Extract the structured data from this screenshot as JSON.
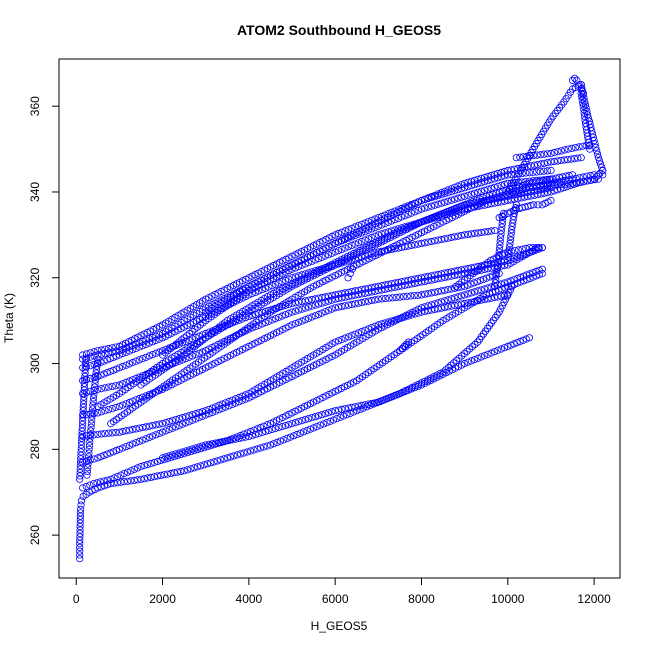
{
  "chart_data": {
    "type": "scatter",
    "title": "ATOM2 Southbound H_GEOS5",
    "xlabel": "H_GEOS5",
    "ylabel": "Theta (K)",
    "xlim": [
      -400,
      12600
    ],
    "ylim": [
      250,
      371
    ],
    "x_ticks": [
      0,
      2000,
      4000,
      6000,
      8000,
      10000,
      12000
    ],
    "x_tick_labels": [
      "0",
      "2000",
      "4000",
      "6000",
      "8000",
      "10000",
      "12000"
    ],
    "y_ticks": [
      260,
      280,
      300,
      320,
      340,
      360
    ],
    "y_tick_labels": [
      "260",
      "280",
      "300",
      "320",
      "340",
      "360"
    ],
    "grid": false,
    "marker": "open-circle",
    "point_color": "#0000ff",
    "series": [
      {
        "x": [
          80,
          80,
          90,
          100,
          120,
          160,
          300,
          500,
          800,
          1500,
          2500,
          3500,
          4500,
          5500,
          6500,
          7500,
          8500,
          9300,
          9800,
          10100
        ],
        "y": [
          254.5,
          258,
          262,
          266,
          268,
          269,
          270,
          271,
          272,
          273,
          275,
          278,
          281,
          285,
          289,
          293,
          298,
          305,
          312,
          318
        ]
      },
      {
        "x": [
          150,
          400,
          800,
          1500,
          2500,
          3500,
          4500,
          5500,
          6500,
          7500,
          8500,
          9500,
          10300,
          10800
        ],
        "y": [
          271,
          272,
          273,
          276,
          279,
          282,
          286,
          291,
          296,
          303,
          310,
          316,
          319,
          321
        ]
      },
      {
        "x": [
          150,
          500,
          1000,
          2000,
          3000,
          4000,
          5000,
          6000,
          7000,
          8000,
          9000,
          10000,
          10800
        ],
        "y": [
          277,
          278,
          280,
          284,
          288,
          292,
          297,
          302,
          308,
          313,
          316,
          319,
          322
        ]
      },
      {
        "x": [
          150,
          500,
          1000,
          2000,
          3000,
          4000,
          5000,
          6000,
          7000,
          8000,
          9000,
          10000
        ],
        "y": [
          283,
          283.5,
          284,
          286,
          289,
          293,
          299,
          305,
          309,
          312,
          314,
          316
        ]
      },
      {
        "x": [
          150,
          500,
          1000,
          2000,
          3000,
          4000,
          5000,
          6000,
          7000,
          8000,
          9000,
          9800
        ],
        "y": [
          288,
          288.5,
          290,
          294,
          299,
          304,
          309,
          313,
          315,
          316,
          318,
          321
        ]
      },
      {
        "x": [
          150,
          500,
          1000,
          2000,
          3000,
          4000,
          5000,
          6000,
          7000,
          8000,
          9000,
          10000,
          10700
        ],
        "y": [
          293,
          294,
          295,
          299,
          303,
          308,
          312,
          315,
          317,
          319,
          321,
          323,
          327
        ]
      },
      {
        "x": [
          150,
          500,
          1000,
          2000,
          3000,
          4000,
          5000,
          6000,
          7000,
          8000,
          9000,
          10000,
          10800
        ],
        "y": [
          296,
          297,
          299,
          303,
          307,
          311,
          314,
          316,
          318,
          320,
          322,
          324,
          327
        ]
      },
      {
        "x": [
          150,
          500,
          1000,
          2000,
          3000,
          4000,
          5000,
          6000,
          7000,
          8000,
          9000,
          9700
        ],
        "y": [
          299,
          300,
          302,
          306,
          311,
          316,
          320,
          323,
          326,
          328,
          330,
          331
        ]
      },
      {
        "x": [
          150,
          500,
          1000,
          2000,
          3000,
          4000,
          5000,
          6000,
          7000,
          8000,
          9000,
          10000,
          11000
        ],
        "y": [
          301,
          302,
          303,
          307,
          313,
          318,
          323,
          328,
          332,
          336,
          339,
          342,
          343
        ]
      },
      {
        "x": [
          150,
          500,
          1000,
          2000,
          3000,
          4000,
          5000,
          6000,
          7000,
          8000,
          9000,
          10000,
          11000
        ],
        "y": [
          302,
          303,
          304,
          309,
          315,
          320,
          325,
          330,
          334,
          338,
          341,
          344,
          345
        ]
      },
      {
        "x": [
          500,
          1000,
          2000,
          3000,
          4000,
          5000,
          6000,
          7000,
          8000,
          9000,
          10000,
          11000
        ],
        "y": [
          290,
          293,
          300,
          306,
          312,
          318,
          323,
          328,
          333,
          337,
          339,
          341
        ]
      },
      {
        "x": [
          800,
          1500,
          2500,
          3500,
          4500,
          5500,
          6500,
          7500,
          8500,
          9500,
          10500,
          11500,
          12100
        ],
        "y": [
          286,
          291,
          298,
          305,
          312,
          318,
          323,
          328,
          333,
          338,
          341,
          342,
          343
        ]
      },
      {
        "x": [
          2000,
          3000,
          4000,
          5000,
          6000,
          7000,
          8000,
          9000,
          10000,
          11000,
          11600,
          12000,
          12200
        ],
        "y": [
          302,
          310,
          317,
          322,
          326,
          330,
          333,
          336,
          338,
          340,
          342,
          343,
          345
        ]
      },
      {
        "x": [
          3000,
          4000,
          5000,
          6000,
          7000,
          8000,
          9000,
          10000,
          11000,
          11700
        ],
        "y": [
          312,
          318,
          323,
          328,
          333,
          338,
          342,
          345,
          347,
          348
        ]
      },
      {
        "x": [
          1500,
          2500,
          3500,
          4500,
          5500,
          6500,
          7500,
          8500,
          9500,
          10500,
          11500
        ],
        "y": [
          295,
          302,
          310,
          316,
          321,
          326,
          331,
          335,
          339,
          342,
          344
        ]
      },
      {
        "x": [
          10000,
          10300,
          10700,
          11000,
          11300,
          11500,
          11700
        ],
        "y": [
          340,
          345,
          352,
          357,
          361,
          364,
          365
        ]
      },
      {
        "x": [
          11500,
          11550,
          11600,
          11650,
          11700,
          11750
        ],
        "y": [
          366,
          366.5,
          366,
          365,
          364,
          363
        ]
      },
      {
        "x": [
          11700,
          11750,
          11800,
          11850,
          11900
        ],
        "y": [
          363,
          360,
          356,
          353,
          350
        ]
      },
      {
        "x": [
          11700,
          11850,
          12000,
          12100,
          12200
        ],
        "y": [
          365,
          358,
          352,
          348,
          345
        ]
      },
      {
        "x": [
          10200,
          10600,
          11000,
          11400,
          11900
        ],
        "y": [
          348,
          348.5,
          349,
          350,
          351
        ]
      },
      {
        "x": [
          10100,
          10500,
          11000,
          11500,
          12000,
          12200
        ],
        "y": [
          340,
          341,
          342,
          343,
          344,
          344
        ]
      },
      {
        "x": [
          9700,
          9750,
          9800,
          9850,
          9900
        ],
        "y": [
          318,
          322,
          326,
          331,
          335
        ]
      },
      {
        "x": [
          10000,
          10050,
          10100,
          10150,
          10200
        ],
        "y": [
          324,
          328,
          332,
          335,
          337
        ]
      },
      {
        "x": [
          8800,
          9200,
          9600,
          10000,
          10500,
          10800
        ],
        "y": [
          318,
          321,
          324,
          326,
          327,
          327
        ]
      },
      {
        "x": [
          7500,
          7600,
          7700
        ],
        "y": [
          303,
          304,
          305
        ]
      },
      {
        "x": [
          6300,
          6350,
          6400
        ],
        "y": [
          320,
          321,
          322
        ]
      },
      {
        "x": [
          80,
          100,
          120,
          140,
          160,
          180,
          200,
          220
        ],
        "y": [
          273,
          277,
          281,
          285,
          289,
          293,
          297,
          301
        ]
      },
      {
        "x": [
          250,
          300,
          350,
          400,
          450,
          500
        ],
        "y": [
          274,
          280,
          286,
          292,
          297,
          301
        ]
      },
      {
        "x": [
          9800,
          10000,
          10200,
          10400,
          10600,
          10800,
          11000
        ],
        "y": [
          334,
          335,
          336,
          336.5,
          337,
          337,
          338
        ]
      },
      {
        "x": [
          2000,
          3000,
          4000,
          5000,
          6000,
          7000,
          8000,
          9000,
          10000,
          10500
        ],
        "y": [
          278,
          281,
          283,
          286,
          289,
          291,
          295,
          300,
          304,
          306
        ]
      }
    ]
  }
}
